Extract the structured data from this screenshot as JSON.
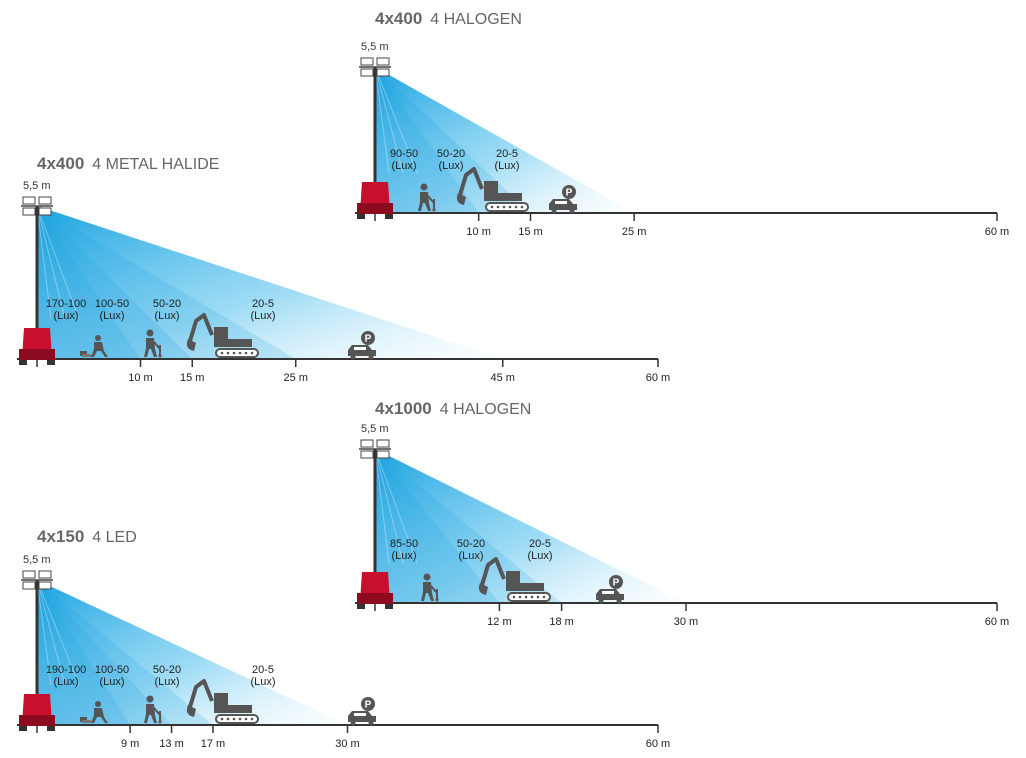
{
  "diagrams": [
    {
      "id": "halogen-400",
      "title_bold": "4x400",
      "title_rest": "4 HALOGEN",
      "height": "5,5 m",
      "lux_bands": [
        {
          "range": "90-50",
          "unit": "(Lux)"
        },
        {
          "range": "50-20",
          "unit": "(Lux)"
        },
        {
          "range": "20-5",
          "unit": "(Lux)"
        }
      ],
      "distances": [
        {
          "label": "10 m",
          "value": 10
        },
        {
          "label": "15 m",
          "value": 15
        },
        {
          "label": "25 m",
          "value": 25
        },
        {
          "label": "60 m",
          "value": 60
        }
      ]
    },
    {
      "id": "metal-halide-400",
      "title_bold": "4x400",
      "title_rest": "4 METAL HALIDE",
      "height": "5,5 m",
      "lux_bands": [
        {
          "range": "170-100",
          "unit": "(Lux)"
        },
        {
          "range": "100-50",
          "unit": "(Lux)"
        },
        {
          "range": "50-20",
          "unit": "(Lux)"
        },
        {
          "range": "20-5",
          "unit": "(Lux)"
        }
      ],
      "distances": [
        {
          "label": "10 m",
          "value": 10
        },
        {
          "label": "15 m",
          "value": 15
        },
        {
          "label": "25 m",
          "value": 25
        },
        {
          "label": "45 m",
          "value": 45
        },
        {
          "label": "60 m",
          "value": 60
        }
      ]
    },
    {
      "id": "halogen-1000",
      "title_bold": "4x1000",
      "title_rest": "4 HALOGEN",
      "height": "5,5 m",
      "lux_bands": [
        {
          "range": "85-50",
          "unit": "(Lux)"
        },
        {
          "range": "50-20",
          "unit": "(Lux)"
        },
        {
          "range": "20-5",
          "unit": "(Lux)"
        }
      ],
      "distances": [
        {
          "label": "12 m",
          "value": 12
        },
        {
          "label": "18 m",
          "value": 18
        },
        {
          "label": "30 m",
          "value": 30
        },
        {
          "label": "60 m",
          "value": 60
        }
      ]
    },
    {
      "id": "led-150",
      "title_bold": "4x150",
      "title_rest": "4 LED",
      "height": "5,5 m",
      "lux_bands": [
        {
          "range": "190-100",
          "unit": "(Lux)"
        },
        {
          "range": "100-50",
          "unit": "(Lux)"
        },
        {
          "range": "50-20",
          "unit": "(Lux)"
        },
        {
          "range": "20-5",
          "unit": "(Lux)"
        }
      ],
      "distances": [
        {
          "label": "9 m",
          "value": 9
        },
        {
          "label": "13 m",
          "value": 13
        },
        {
          "label": "17 m",
          "value": 17
        },
        {
          "label": "30 m",
          "value": 30
        },
        {
          "label": "60 m",
          "value": 60
        }
      ]
    }
  ],
  "colors": {
    "light_blue": "#1aa3e0",
    "tower_red": "#c8102e",
    "icon_gray": "#555555",
    "ground": "#333333"
  },
  "icons": [
    "light-tower-icon",
    "worker-paving-icon",
    "worker-drilling-icon",
    "excavator-icon",
    "parking-car-icon"
  ]
}
